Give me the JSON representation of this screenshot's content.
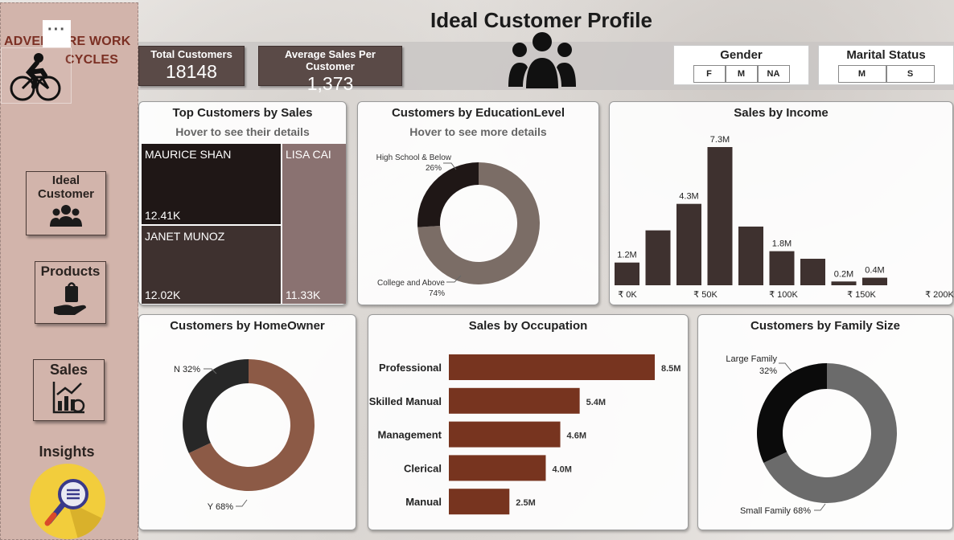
{
  "title": "Ideal Customer Profile",
  "sidebar": {
    "logo_line1": "ADVENTURE WORK",
    "logo_line2": "CYCLES",
    "more_label": "···",
    "nav": [
      {
        "label_line1": "Ideal",
        "label_line2": "Customer",
        "icon": "users-icon"
      },
      {
        "label_line1": "Products",
        "label_line2": "",
        "icon": "product-hand-icon"
      },
      {
        "label_line1": "Sales",
        "label_line2": "",
        "icon": "sales-chart-icon"
      },
      {
        "label_line1": "Insights",
        "label_line2": "",
        "icon": "magnifier-icon"
      }
    ]
  },
  "kpis": [
    {
      "title": "Total Customers",
      "value": "18148"
    },
    {
      "title": "Average Sales Per Customer",
      "value": "1,373"
    }
  ],
  "slicers": {
    "gender": {
      "title": "Gender",
      "options": [
        "F",
        "M",
        "NA"
      ]
    },
    "marital": {
      "title": "Marital Status",
      "options": [
        "M",
        "S"
      ]
    }
  },
  "top_customers": {
    "title": "Top Customers by Sales",
    "subtitle": "Hover to see their details",
    "items": [
      {
        "name": "MAURICE SHAN",
        "value": "12.41K"
      },
      {
        "name": "JANET MUNOZ",
        "value": "12.02K"
      },
      {
        "name": "LISA CAI",
        "value": "11.33K"
      }
    ]
  },
  "colors": {
    "dark": "#1f1716",
    "brown": "#3e312f",
    "mauve": "#8a7271",
    "rust": "#77341f",
    "donut_light": "#7b6d66",
    "homeowner_y": "#8c5a46",
    "grey": "#6b6b6b"
  },
  "chart_data": [
    {
      "type": "pie",
      "title": "Customers by EducationLevel",
      "subtitle": "Hover to see more details",
      "slices": [
        {
          "label": "High School & Below",
          "value": 26,
          "display": "26%"
        },
        {
          "label": "College and Above",
          "value": 74,
          "display": "74%"
        }
      ]
    },
    {
      "type": "bar",
      "title": "Sales by Income",
      "values": [
        1.2,
        2.9,
        4.3,
        7.3,
        3.1,
        1.8,
        1.4,
        0.2,
        0.4
      ],
      "labels": [
        "1.2M",
        "",
        "4.3M",
        "7.3M",
        "",
        "1.8M",
        "",
        "0.2M",
        "0.4M"
      ],
      "x_ticks": [
        "₹ 0K",
        "₹ 50K",
        "₹ 100K",
        "₹ 150K",
        "₹ 200K"
      ],
      "ylim": [
        0,
        7.3
      ]
    },
    {
      "type": "pie",
      "title": "Customers by HomeOwner",
      "slices": [
        {
          "label": "N",
          "value": 32,
          "display": "N 32%"
        },
        {
          "label": "Y",
          "value": 68,
          "display": "Y 68%"
        }
      ]
    },
    {
      "type": "bar",
      "title": "Sales by Occupation",
      "categories": [
        "Professional",
        "Skilled Manual",
        "Management",
        "Clerical",
        "Manual"
      ],
      "values": [
        8.5,
        5.4,
        4.6,
        4.0,
        2.5
      ],
      "labels": [
        "8.5M",
        "5.4M",
        "4.6M",
        "4.0M",
        "2.5M"
      ]
    },
    {
      "type": "pie",
      "title": "Customers by Family Size",
      "slices": [
        {
          "label": "Large Family",
          "value": 32,
          "display": "32%"
        },
        {
          "label": "Small Family",
          "value": 68,
          "display": "Small Family 68%"
        }
      ]
    }
  ]
}
